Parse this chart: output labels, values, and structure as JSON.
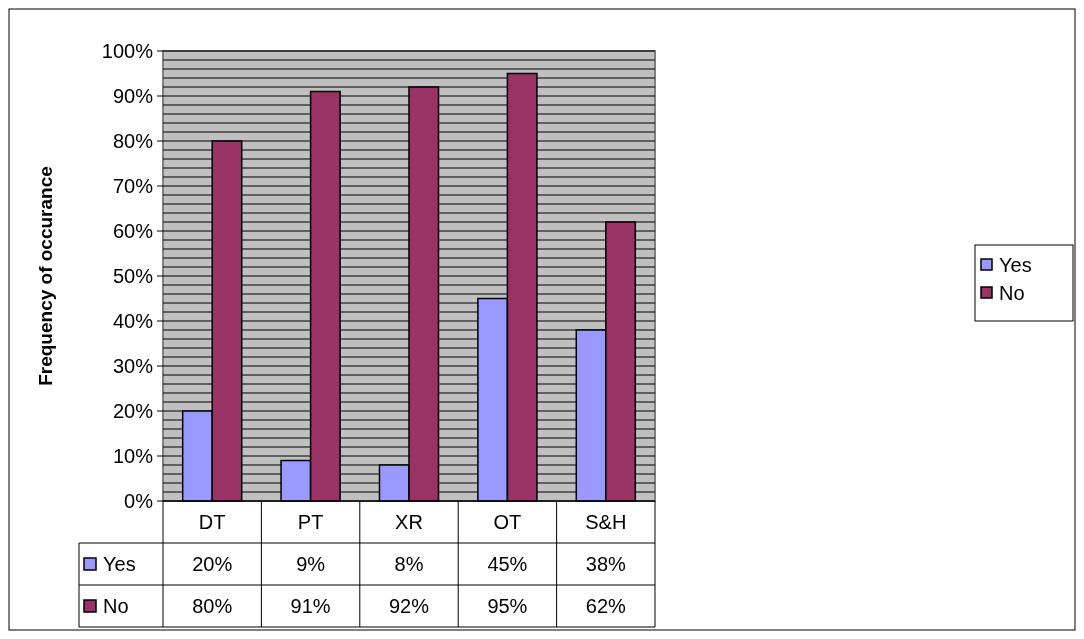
{
  "chart_data": {
    "type": "bar",
    "ylabel": "Frequency of occurance",
    "categories": [
      "DT",
      "PT",
      "XR",
      "OT",
      "S&H"
    ],
    "series": [
      {
        "name": "Yes",
        "color": "#9999ff",
        "values": [
          20,
          9,
          8,
          45,
          38
        ],
        "value_labels": [
          "20%",
          "9%",
          "8%",
          "45%",
          "38%"
        ]
      },
      {
        "name": "No",
        "color": "#993366",
        "values": [
          80,
          91,
          92,
          95,
          62
        ],
        "value_labels": [
          "80%",
          "91%",
          "92%",
          "95%",
          "62%"
        ]
      }
    ],
    "ylim": [
      0,
      100
    ],
    "yticks": [
      {
        "value": 0,
        "label": "0%"
      },
      {
        "value": 2,
        "label": null
      },
      {
        "value": 4,
        "label": null
      },
      {
        "value": 6,
        "label": null
      },
      {
        "value": 8,
        "label": null
      },
      {
        "value": 10,
        "label": "10%"
      },
      {
        "value": 12,
        "label": null
      },
      {
        "value": 14,
        "label": null
      },
      {
        "value": 16,
        "label": null
      },
      {
        "value": 18,
        "label": null
      },
      {
        "value": 20,
        "label": "20%"
      },
      {
        "value": 22,
        "label": null
      },
      {
        "value": 24,
        "label": null
      },
      {
        "value": 26,
        "label": null
      },
      {
        "value": 28,
        "label": null
      },
      {
        "value": 30,
        "label": "30%"
      },
      {
        "value": 32,
        "label": null
      },
      {
        "value": 34,
        "label": null
      },
      {
        "value": 36,
        "label": null
      },
      {
        "value": 38,
        "label": null
      },
      {
        "value": 40,
        "label": "40%"
      },
      {
        "value": 42,
        "label": null
      },
      {
        "value": 44,
        "label": null
      },
      {
        "value": 46,
        "label": null
      },
      {
        "value": 48,
        "label": null
      },
      {
        "value": 50,
        "label": "50%"
      },
      {
        "value": 52,
        "label": null
      },
      {
        "value": 54,
        "label": null
      },
      {
        "value": 56,
        "label": null
      },
      {
        "value": 58,
        "label": null
      },
      {
        "value": 60,
        "label": "60%"
      },
      {
        "value": 62,
        "label": null
      },
      {
        "value": 64,
        "label": null
      },
      {
        "value": 66,
        "label": null
      },
      {
        "value": 68,
        "label": null
      },
      {
        "value": 70,
        "label": "70%"
      },
      {
        "value": 72,
        "label": null
      },
      {
        "value": 74,
        "label": null
      },
      {
        "value": 76,
        "label": null
      },
      {
        "value": 78,
        "label": null
      },
      {
        "value": 80,
        "label": "80%"
      },
      {
        "value": 82,
        "label": null
      },
      {
        "value": 84,
        "label": null
      },
      {
        "value": 86,
        "label": null
      },
      {
        "value": 88,
        "label": null
      },
      {
        "value": 90,
        "label": "90%"
      },
      {
        "value": 92,
        "label": null
      },
      {
        "value": 94,
        "label": null
      },
      {
        "value": 96,
        "label": null
      },
      {
        "value": 98,
        "label": null
      },
      {
        "value": 100,
        "label": "100%"
      }
    ],
    "grid": "y",
    "legend": "bottom left"
  }
}
